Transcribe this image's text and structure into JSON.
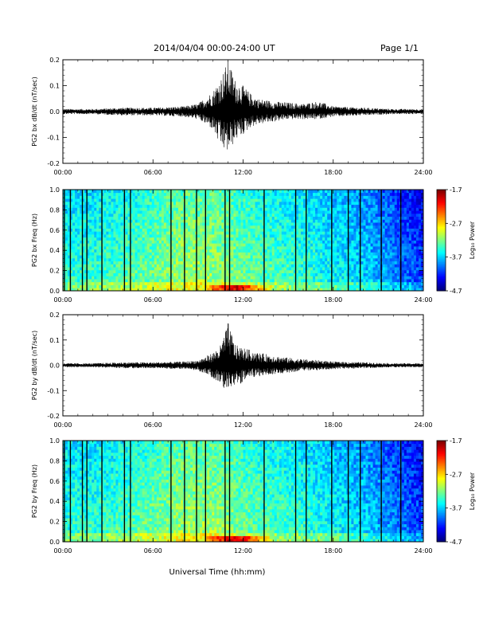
{
  "header": {
    "title": "2014/04/04  00:00-24:00 UT",
    "page": "Page 1/1"
  },
  "chart_data": [
    {
      "type": "line",
      "ylabel": "PG2 bx dB/dt (nT/sec)",
      "ylim": [
        -0.2,
        0.2
      ],
      "yticks": [
        "0.2",
        "0.1",
        "0.0",
        "-0.1",
        "-0.2"
      ],
      "xlim": [
        "00:00",
        "24:00"
      ],
      "xticks": [
        "00:00",
        "06:00",
        "12:00",
        "18:00",
        "24:00"
      ],
      "envelope": {
        "t_hours": [
          0,
          2,
          4,
          6,
          8,
          9,
          10,
          10.5,
          11,
          11.5,
          12,
          12.5,
          13,
          14,
          15,
          16,
          17,
          18,
          20,
          22,
          24
        ],
        "max": [
          0.01,
          0.01,
          0.015,
          0.015,
          0.02,
          0.03,
          0.08,
          0.13,
          0.2,
          0.12,
          0.1,
          0.07,
          0.05,
          0.04,
          0.035,
          0.03,
          0.04,
          0.02,
          0.015,
          0.01,
          0.01
        ],
        "min": [
          -0.01,
          -0.01,
          -0.015,
          -0.015,
          -0.02,
          -0.03,
          -0.07,
          -0.14,
          -0.16,
          -0.11,
          -0.09,
          -0.06,
          -0.05,
          -0.04,
          -0.03,
          -0.03,
          -0.03,
          -0.02,
          -0.015,
          -0.01,
          -0.01
        ]
      }
    },
    {
      "type": "heatmap",
      "ylabel": "PG2 bx Freq (Hz)",
      "ylim": [
        0.0,
        1.0
      ],
      "yticks": [
        "1.0",
        "0.8",
        "0.6",
        "0.4",
        "0.2",
        "0.0"
      ],
      "xlim": [
        "00:00",
        "24:00"
      ],
      "xticks": [
        "00:00",
        "06:00",
        "12:00",
        "18:00",
        "24:00"
      ],
      "colorbar": {
        "label": "Log₁₀ Power",
        "range": [
          -4.7,
          -1.7
        ],
        "ticks": [
          "-1.7",
          "-2.7",
          "-3.7",
          "-4.7"
        ]
      },
      "data_gaps_hours": [
        0.1,
        0.5,
        1.3,
        1.6,
        2.6,
        4.1,
        4.5,
        7.2,
        8.1,
        8.9,
        9.5,
        10.8,
        11.1,
        13.4,
        15.5,
        16.2,
        17.9,
        19.0,
        19.8,
        21.2,
        22.5
      ]
    },
    {
      "type": "line",
      "ylabel": "PG2 by dB/dt (nT/sec)",
      "ylim": [
        -0.2,
        0.2
      ],
      "yticks": [
        "0.2",
        "0.1",
        "0.0",
        "-0.1",
        "-0.2"
      ],
      "xlim": [
        "00:00",
        "24:00"
      ],
      "xticks": [
        "00:00",
        "06:00",
        "12:00",
        "18:00",
        "24:00"
      ],
      "envelope": {
        "t_hours": [
          0,
          2,
          4,
          6,
          8,
          9,
          10,
          10.5,
          11,
          11.5,
          12,
          12.5,
          13,
          14,
          15,
          16,
          17,
          18,
          20,
          22,
          24
        ],
        "max": [
          0.008,
          0.008,
          0.012,
          0.012,
          0.015,
          0.02,
          0.05,
          0.08,
          0.17,
          0.08,
          0.07,
          0.06,
          0.05,
          0.04,
          0.03,
          0.025,
          0.02,
          0.015,
          0.012,
          0.008,
          0.008
        ],
        "min": [
          -0.008,
          -0.008,
          -0.012,
          -0.012,
          -0.015,
          -0.02,
          -0.05,
          -0.08,
          -0.1,
          -0.08,
          -0.07,
          -0.05,
          -0.045,
          -0.035,
          -0.03,
          -0.02,
          -0.02,
          -0.015,
          -0.012,
          -0.008,
          -0.008
        ]
      }
    },
    {
      "type": "heatmap",
      "ylabel": "PG2 by Freq (Hz)",
      "ylim": [
        0.0,
        1.0
      ],
      "yticks": [
        "1.0",
        "0.8",
        "0.6",
        "0.4",
        "0.2",
        "0.0"
      ],
      "xlim": [
        "00:00",
        "24:00"
      ],
      "xticks": [
        "00:00",
        "06:00",
        "12:00",
        "18:00",
        "24:00"
      ],
      "xlabel": "Universal Time (hh:mm)",
      "colorbar": {
        "label": "Log₁₀ Power",
        "range": [
          -4.7,
          -1.7
        ],
        "ticks": [
          "-1.7",
          "-2.7",
          "-3.7",
          "-4.7"
        ]
      },
      "data_gaps_hours": [
        0.1,
        0.5,
        1.3,
        1.6,
        2.6,
        4.1,
        4.5,
        7.2,
        8.1,
        8.9,
        9.5,
        10.8,
        11.1,
        13.4,
        15.5,
        16.2,
        17.9,
        19.0,
        19.8,
        21.2,
        22.5
      ]
    }
  ]
}
